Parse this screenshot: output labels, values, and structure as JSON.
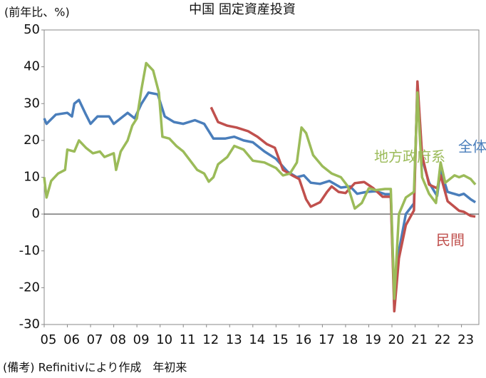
{
  "chart_data": {
    "type": "line",
    "title": "中国 固定資産投資",
    "y_label": "(前年比、%)",
    "note": "(備考) Refinitivにより作成　年初来",
    "xlim": [
      2005,
      2023.75
    ],
    "xticks": [
      {
        "value": 2005,
        "label": "05"
      },
      {
        "value": 2006,
        "label": "06"
      },
      {
        "value": 2007,
        "label": "07"
      },
      {
        "value": 2008,
        "label": "08"
      },
      {
        "value": 2009,
        "label": "09"
      },
      {
        "value": 2010,
        "label": "10"
      },
      {
        "value": 2011,
        "label": "11"
      },
      {
        "value": 2012,
        "label": "12"
      },
      {
        "value": 2013,
        "label": "13"
      },
      {
        "value": 2014,
        "label": "14"
      },
      {
        "value": 2015,
        "label": "15"
      },
      {
        "value": 2016,
        "label": "16"
      },
      {
        "value": 2017,
        "label": "17"
      },
      {
        "value": 2018,
        "label": "18"
      },
      {
        "value": 2019,
        "label": "19"
      },
      {
        "value": 2020,
        "label": "20"
      },
      {
        "value": 2021,
        "label": "21"
      },
      {
        "value": 2022,
        "label": "22"
      },
      {
        "value": 2023,
        "label": "23"
      }
    ],
    "ylim": [
      -30,
      50
    ],
    "yticks": [
      -30,
      -20,
      -10,
      0,
      10,
      20,
      30,
      40,
      50
    ],
    "grid": false,
    "series": [
      {
        "name": "全体",
        "color": "#4a7ebb",
        "x": [
          2005.0,
          2005.1,
          2005.5,
          2006.0,
          2006.2,
          2006.3,
          2006.5,
          2006.8,
          2007.0,
          2007.3,
          2007.8,
          2008.0,
          2008.3,
          2008.6,
          2008.9,
          2009.2,
          2009.5,
          2009.9,
          2010.2,
          2010.6,
          2011.0,
          2011.5,
          2011.9,
          2012.3,
          2012.8,
          2013.2,
          2013.6,
          2014.0,
          2014.5,
          2015.0,
          2015.5,
          2015.9,
          2016.2,
          2016.5,
          2016.9,
          2017.3,
          2017.8,
          2018.2,
          2018.5,
          2018.9,
          2019.3,
          2019.7,
          2019.95,
          2020.1,
          2020.3,
          2020.6,
          2020.95,
          2021.1,
          2021.3,
          2021.6,
          2021.95,
          2022.1,
          2022.4,
          2022.9,
          2023.1,
          2023.4,
          2023.6
        ],
        "values": [
          26,
          24.5,
          27,
          27.5,
          26.5,
          30,
          31,
          27,
          24.5,
          26.5,
          26.5,
          24.5,
          26,
          27.5,
          26,
          30,
          33,
          32.5,
          26.5,
          25,
          24.5,
          25.5,
          24.5,
          20.5,
          20.5,
          21,
          20,
          19.5,
          17,
          15,
          11.5,
          10,
          10.5,
          8.5,
          8.2,
          9,
          7.2,
          7.5,
          5.5,
          6,
          6.2,
          5.4,
          5.4,
          -24.5,
          -10,
          0,
          2.9,
          35,
          15,
          8.5,
          4.9,
          12,
          6,
          5.1,
          5.5,
          4,
          3.2
        ]
      },
      {
        "name": "民間",
        "color": "#c0504d",
        "x": [
          2012.2,
          2012.5,
          2012.9,
          2013.3,
          2013.8,
          2014.2,
          2014.6,
          2014.95,
          2015.3,
          2015.7,
          2016.0,
          2016.3,
          2016.5,
          2016.9,
          2017.2,
          2017.4,
          2017.7,
          2018.0,
          2018.4,
          2018.8,
          2019.2,
          2019.6,
          2019.95,
          2020.1,
          2020.3,
          2020.6,
          2020.95,
          2021.1,
          2021.3,
          2021.6,
          2021.95,
          2022.1,
          2022.4,
          2022.9,
          2023.1,
          2023.4,
          2023.6
        ],
        "values": [
          29,
          25,
          24,
          23.5,
          22.5,
          21,
          19,
          18,
          12,
          10.5,
          9.5,
          4,
          2,
          3.2,
          6,
          7.5,
          6,
          5.7,
          8.4,
          8.7,
          7,
          4.7,
          4.7,
          -26.4,
          -12,
          -3,
          1,
          36,
          16,
          8,
          7,
          10.5,
          3.5,
          0.9,
          0.6,
          -0.5,
          -0.7
        ]
      },
      {
        "name": "地方政府系",
        "color": "#9bbb59",
        "x": [
          2005.0,
          2005.1,
          2005.3,
          2005.6,
          2005.9,
          2006.0,
          2006.3,
          2006.5,
          2006.8,
          2007.1,
          2007.4,
          2007.6,
          2008.0,
          2008.1,
          2008.3,
          2008.6,
          2008.8,
          2009.0,
          2009.2,
          2009.4,
          2009.7,
          2009.95,
          2010.1,
          2010.4,
          2010.7,
          2011.0,
          2011.3,
          2011.6,
          2011.9,
          2012.1,
          2012.3,
          2012.5,
          2012.9,
          2013.2,
          2013.6,
          2014.0,
          2014.5,
          2015.0,
          2015.3,
          2015.6,
          2015.9,
          2016.1,
          2016.3,
          2016.6,
          2017.0,
          2017.4,
          2017.8,
          2018.1,
          2018.4,
          2018.7,
          2019.0,
          2019.3,
          2019.7,
          2019.95,
          2020.1,
          2020.3,
          2020.6,
          2020.95,
          2021.1,
          2021.3,
          2021.6,
          2021.9,
          2022.1,
          2022.3,
          2022.7,
          2022.9,
          2023.1,
          2023.4,
          2023.6
        ],
        "values": [
          10,
          4.5,
          9,
          11,
          12,
          17.5,
          17,
          20,
          18,
          16.5,
          17,
          15.5,
          16.5,
          12,
          17,
          20,
          24,
          26,
          34,
          41,
          39,
          33,
          21,
          20.5,
          18.5,
          17,
          14.5,
          12,
          11,
          8.8,
          10,
          13.5,
          15.5,
          18.5,
          17.5,
          14.5,
          14,
          12.5,
          10.5,
          11,
          14,
          23.5,
          22,
          16,
          13,
          11,
          10,
          7.5,
          1.5,
          3,
          7,
          6.5,
          6.8,
          6.8,
          -23,
          0,
          4.5,
          6,
          33,
          10,
          5.5,
          3,
          14,
          8.5,
          10.5,
          10,
          10.5,
          9.5,
          8
        ]
      }
    ]
  }
}
